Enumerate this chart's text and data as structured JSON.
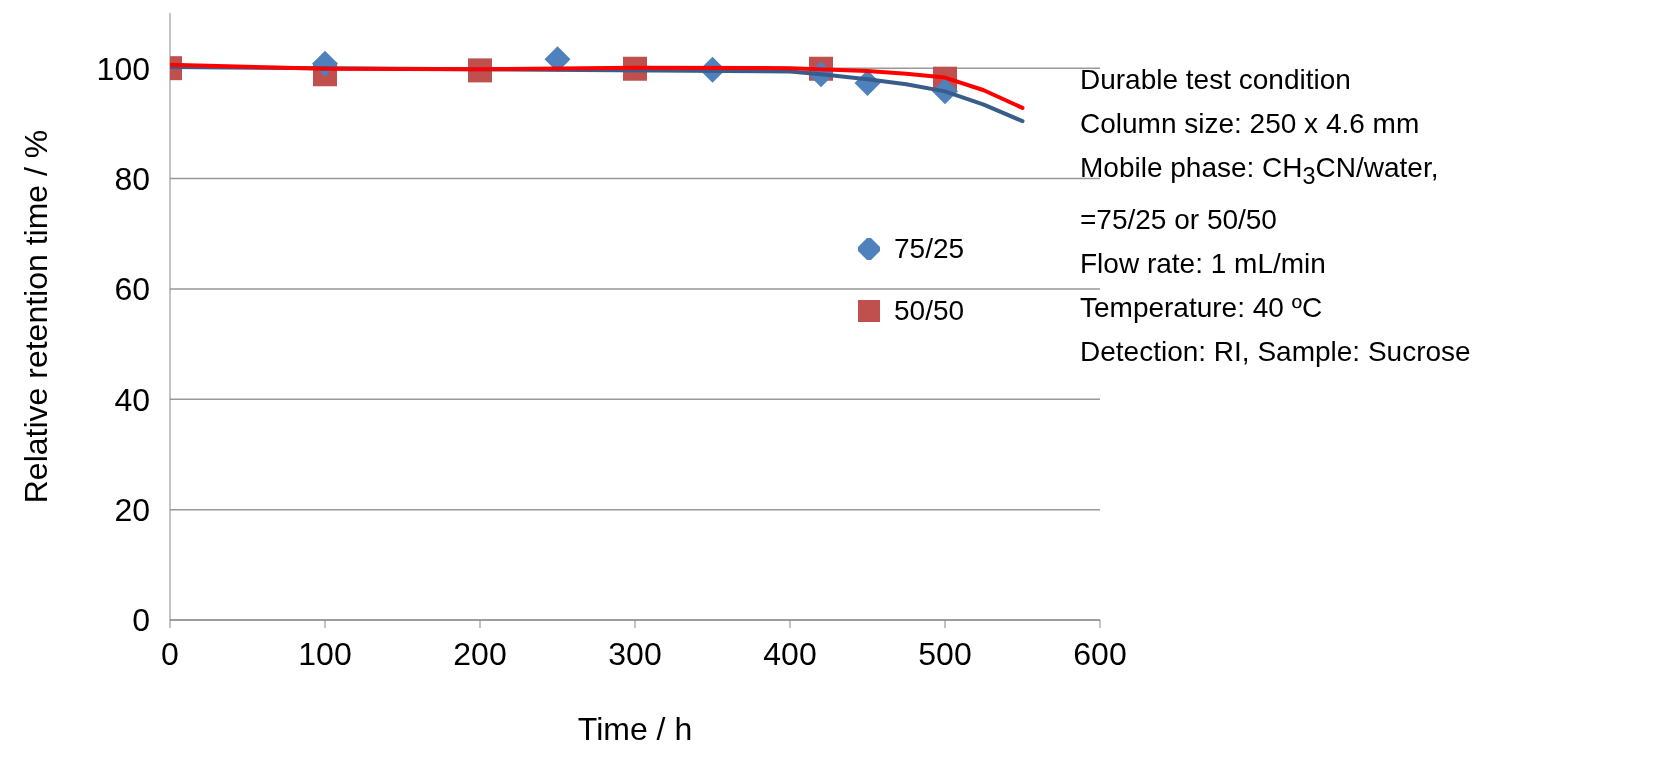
{
  "chart_data": {
    "type": "scatter",
    "xlabel": "Time / h",
    "ylabel": "Relative retention time / %",
    "xlim": [
      0,
      600
    ],
    "xticks": [
      0,
      100,
      200,
      300,
      400,
      500,
      600
    ],
    "ylim": [
      0,
      110
    ],
    "yticks": [
      0,
      20,
      40,
      60,
      80,
      100
    ],
    "grid": "y",
    "legend": "right",
    "series": [
      {
        "name": "75/25",
        "color": "#4f81bd",
        "marker": "diamond",
        "x": [
          100,
          250,
          350,
          420,
          450,
          500
        ],
        "values": [
          100.8,
          101.6,
          99.7,
          98.9,
          97.3,
          95.8
        ]
      },
      {
        "name": "50/50",
        "color": "#c0504d",
        "marker": "square",
        "x": [
          0,
          100,
          200,
          300,
          420,
          500
        ],
        "values": [
          100,
          98.9,
          99.6,
          99.9,
          99.9,
          98.1
        ]
      },
      {
        "type": "line",
        "color": "#385d8a",
        "marker": "none",
        "x": [
          0,
          400,
          420,
          450,
          475,
          500,
          525,
          550
        ],
        "values": [
          100.2,
          99.4,
          98.9,
          98,
          97.1,
          95.8,
          93.4,
          90.4
        ]
      },
      {
        "type": "line",
        "color": "#ff0000",
        "marker": "none",
        "x": [
          0,
          100,
          200,
          300,
          400,
          450,
          475,
          500,
          525,
          550
        ],
        "values": [
          100.6,
          99.9,
          99.8,
          100.1,
          100,
          99.5,
          99,
          98.3,
          96,
          92.8
        ]
      }
    ],
    "annotations": [
      "Durable test condition",
      "Column size:  250 x 4.6 mm",
      "Mobile phase:  CH$_{3}$CN/water,",
      "=75/25 or 50/50",
      "Flow rate: 1  mL/min",
      "Temperature: 40 ºC",
      "Detection: RI, Sample: Sucrose"
    ]
  }
}
